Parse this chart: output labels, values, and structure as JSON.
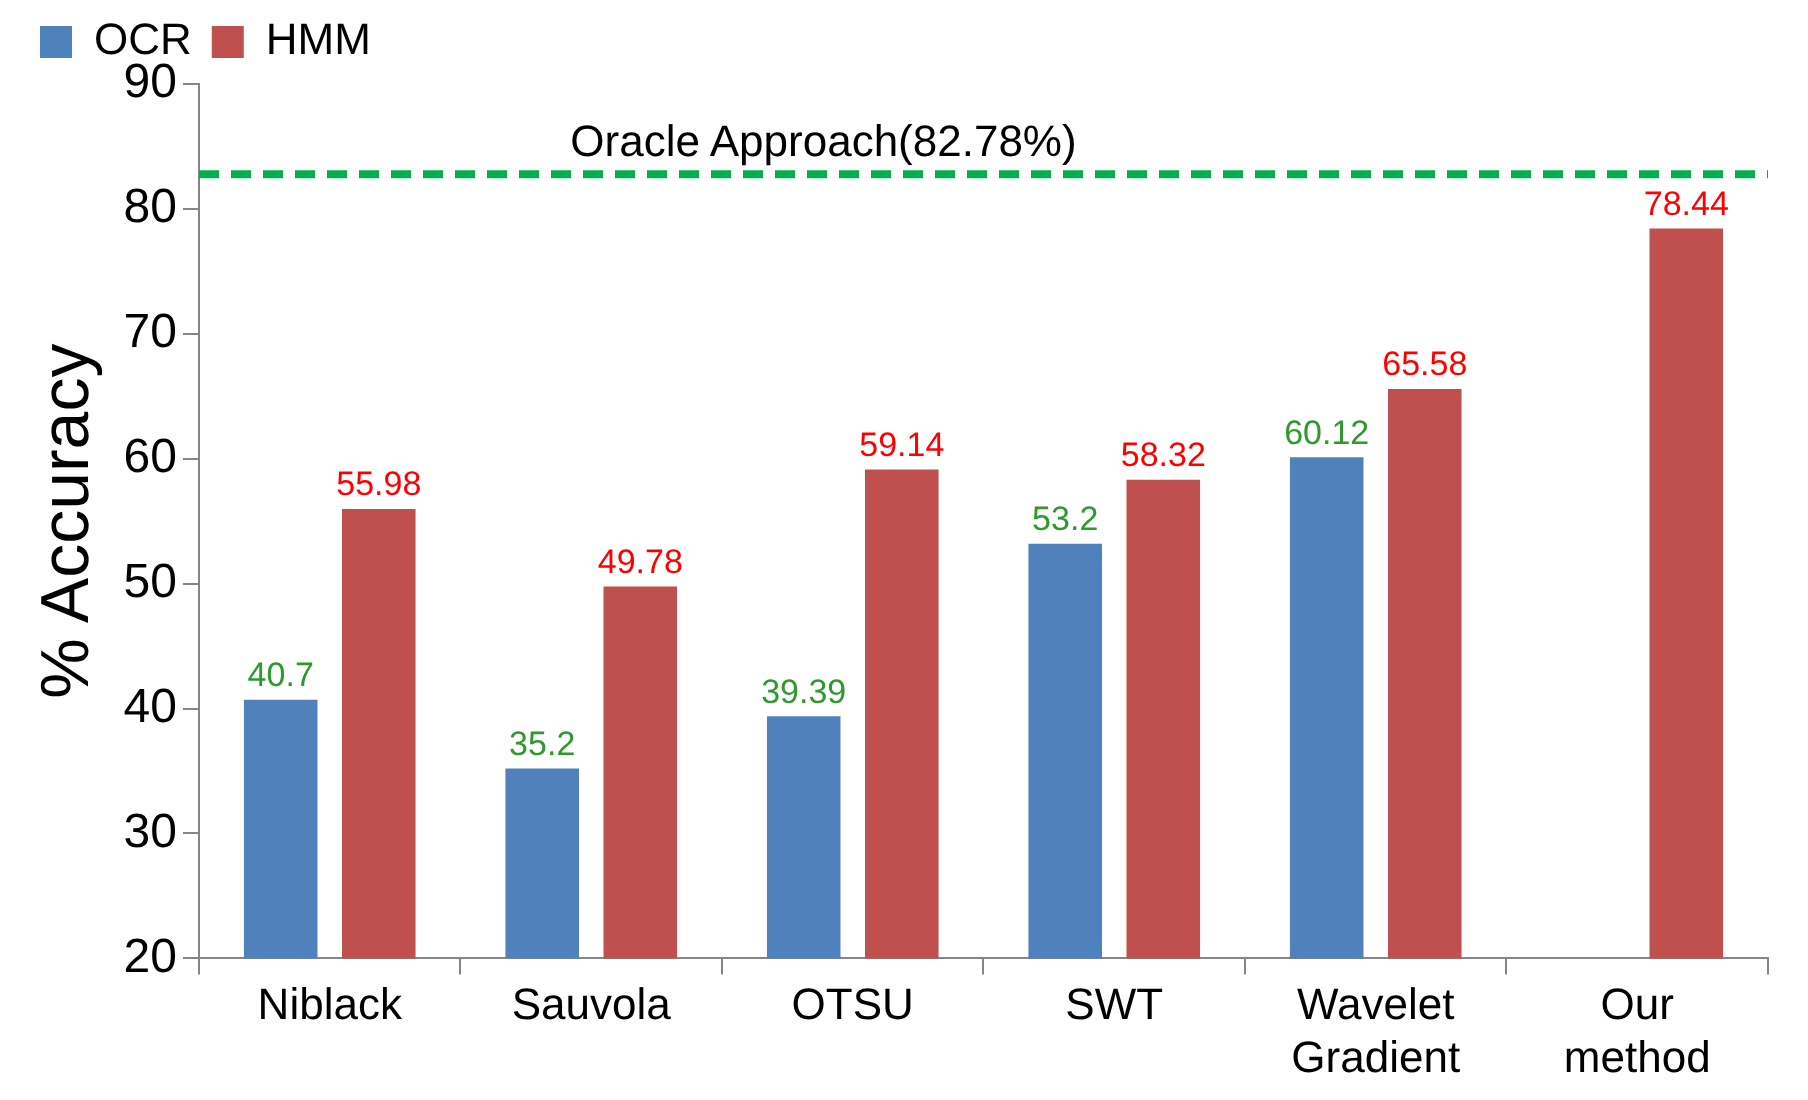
{
  "chart_data": {
    "type": "bar",
    "ylabel": "% Accuracy",
    "categories": [
      "Niblack",
      "Sauvola",
      "OTSU",
      "SWT",
      "Wavelet\nGradient",
      "Our\nmethod"
    ],
    "series": [
      {
        "name": "OCR",
        "color": "#4f81bd",
        "values": [
          40.7,
          35.2,
          39.39,
          53.2,
          60.12,
          null
        ]
      },
      {
        "name": "HMM",
        "color": "#c0504d",
        "values": [
          55.98,
          49.78,
          59.14,
          58.32,
          65.58,
          78.44
        ]
      }
    ],
    "ylim": [
      20,
      90
    ],
    "yticks": [
      20,
      30,
      40,
      50,
      60,
      70,
      80,
      90
    ],
    "grid": false,
    "legend": "top left",
    "data_labels": true,
    "ref_lines": [
      {
        "axis": "y",
        "value": 82.78,
        "label": "Oracle Approach(82.78%)",
        "color": "#00b050",
        "line_style": "dashed"
      }
    ]
  }
}
